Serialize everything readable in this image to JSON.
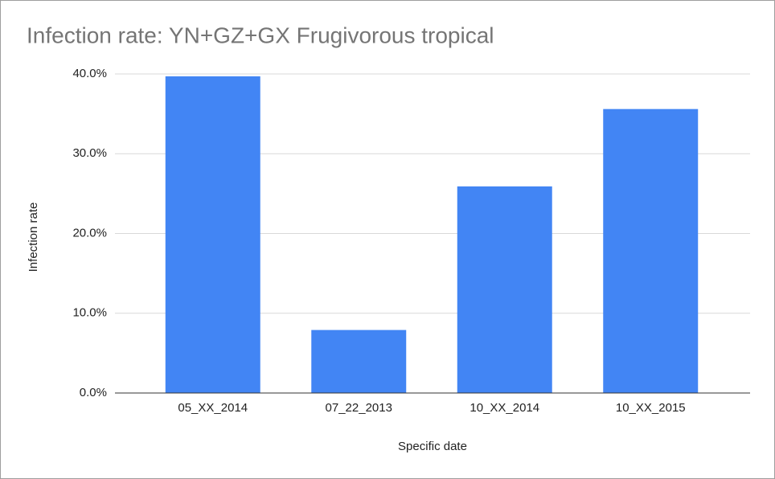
{
  "chart_data": {
    "type": "bar",
    "title": "Infection rate: YN+GZ+GX Frugivorous tropical",
    "x_label": "Specific date",
    "y_label": "Infection rate",
    "categories": [
      "05_XX_2014",
      "07_22_2013",
      "10_XX_2014",
      "10_XX_2015"
    ],
    "values": [
      39.7,
      7.9,
      25.9,
      35.6
    ],
    "color": "#4285f4",
    "ylim": [
      0,
      40
    ],
    "yticks": [
      {
        "value": 0,
        "label": "0.0%"
      },
      {
        "value": 10,
        "label": "10.0%"
      },
      {
        "value": 20,
        "label": "20.0%"
      },
      {
        "value": 30,
        "label": "30.0%"
      },
      {
        "value": 40,
        "label": "40.0%"
      }
    ],
    "grid": true
  }
}
